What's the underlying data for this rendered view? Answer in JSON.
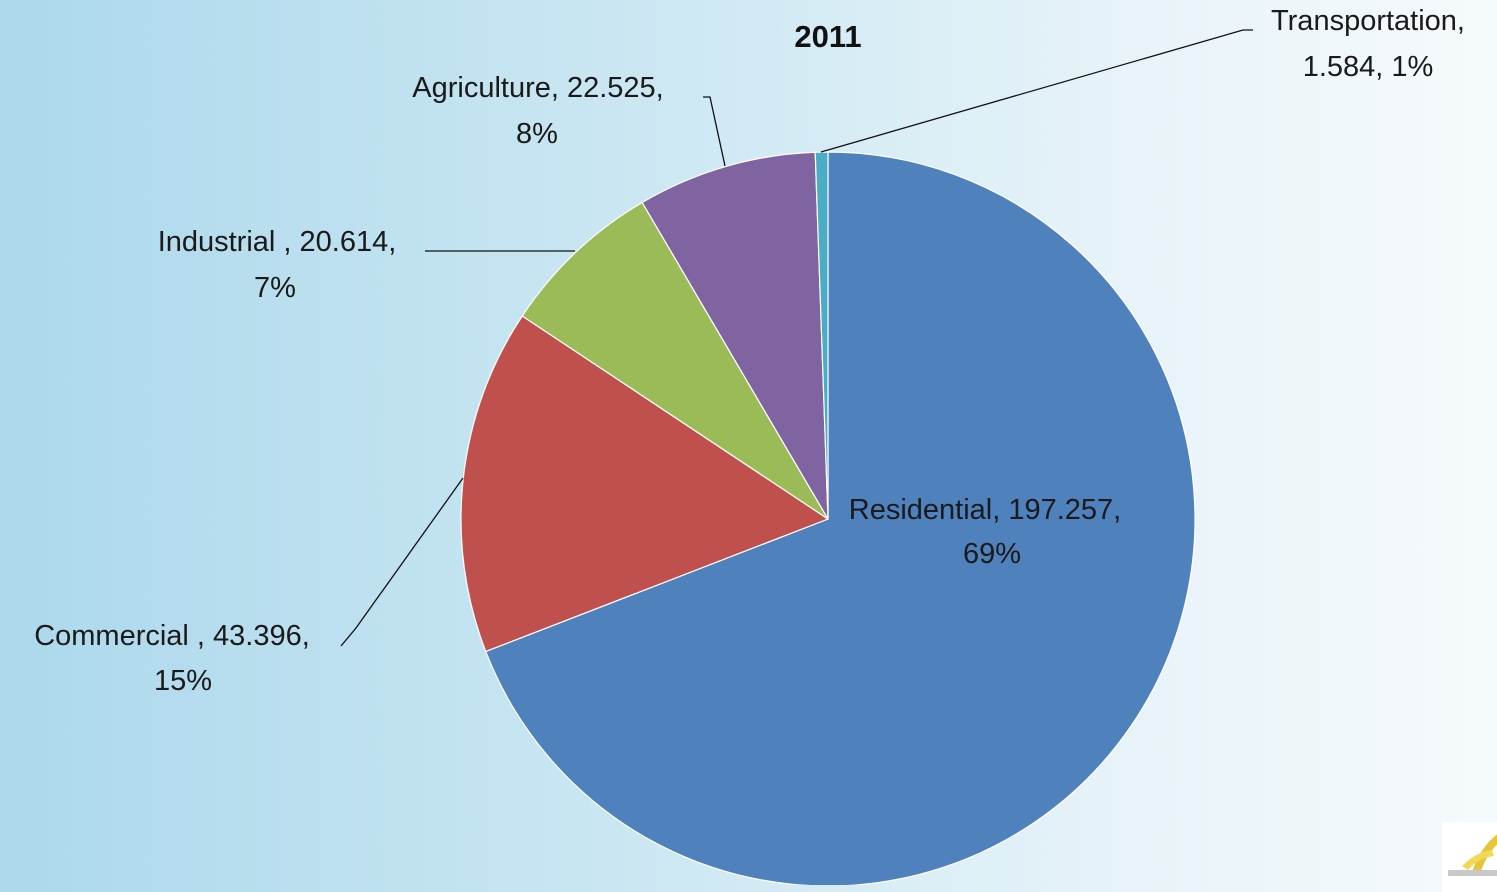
{
  "chart_data": {
    "type": "pie",
    "title": "2011",
    "slices": [
      {
        "label": "Residential",
        "value": 197.257,
        "percent": "69%",
        "value_text": "197.257",
        "color": "#4f81bd"
      },
      {
        "label": "Commercial ",
        "value": 43.396,
        "percent": "15%",
        "value_text": "43.396",
        "color": "#c0504d"
      },
      {
        "label": "Industrial ",
        "value": 20.614,
        "percent": "7%",
        "value_text": "20.614",
        "color": "#9bbb59"
      },
      {
        "label": "Agriculture",
        "value": 22.525,
        "percent": "8%",
        "value_text": "22.525",
        "color": "#8064a2"
      },
      {
        "label": "Transportation",
        "value": 1.584,
        "percent": "1%",
        "value_text": "1.584",
        "color": "#4bacc6"
      }
    ],
    "start_angle_deg": 0,
    "direction": "clockwise",
    "legend": "none"
  },
  "labels": {
    "residential_line1": "Residential, 197.257,",
    "residential_line2": "69%",
    "commercial_line1": "Commercial , 43.396,",
    "commercial_line2": "15%",
    "industrial_line1": "Industrial , 20.614,",
    "industrial_line2": "7%",
    "agriculture_line1": "Agriculture, 22.525,",
    "agriculture_line2": "8%",
    "transportation_line1": "Transportation,",
    "transportation_line2": "1.584, 1%"
  },
  "colors": {
    "residential": "#4f81bd",
    "commercial": "#c0504d",
    "industrial": "#9bbb59",
    "agriculture": "#8064a2",
    "transportation": "#4bacc6"
  }
}
